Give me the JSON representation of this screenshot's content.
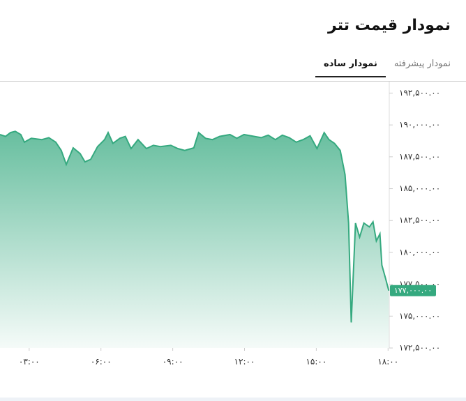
{
  "header": {
    "title": "نمودار قیمت تتر",
    "tabs": [
      "نمودار ساده",
      "نمودار پیشرفته"
    ]
  },
  "chart_data": {
    "type": "area",
    "color": "#35a97f",
    "x": [
      1.78,
      2.01,
      2.22,
      2.42,
      2.65,
      2.8,
      3.09,
      3.53,
      3.82,
      4.11,
      4.34,
      4.55,
      4.84,
      5.13,
      5.33,
      5.57,
      5.86,
      6.15,
      6.3,
      6.5,
      6.79,
      7.02,
      7.26,
      7.55,
      7.9,
      8.19,
      8.48,
      8.92,
      9.21,
      9.5,
      9.88,
      10.08,
      10.37,
      10.66,
      10.96,
      11.39,
      11.68,
      11.98,
      12.41,
      12.7,
      12.99,
      13.29,
      13.58,
      13.87,
      14.16,
      14.45,
      14.74,
      15.03,
      15.33,
      15.53,
      15.76,
      16.0,
      16.2,
      16.35,
      16.46,
      16.64,
      16.81,
      16.99,
      17.22,
      17.37,
      17.51,
      17.66,
      17.74,
      17.89,
      18.03
    ],
    "values": [
      189250,
      189100,
      189400,
      189500,
      189250,
      188650,
      188950,
      188850,
      189000,
      188650,
      188000,
      186900,
      188200,
      187750,
      187100,
      187300,
      188300,
      188850,
      189400,
      188550,
      188950,
      189100,
      188150,
      188850,
      188150,
      188400,
      188300,
      188400,
      188150,
      188000,
      188200,
      189400,
      188950,
      188850,
      189100,
      189250,
      188950,
      189250,
      189100,
      189000,
      189200,
      188850,
      189200,
      189000,
      188650,
      188850,
      189150,
      188150,
      189400,
      188850,
      188550,
      188000,
      186100,
      182300,
      174500,
      182300,
      181200,
      182300,
      182000,
      182400,
      180900,
      181450,
      179000,
      178000,
      177000
    ],
    "xlim": [
      1.78,
      18.05
    ],
    "xticks": [
      {
        "value": 3,
        "label": "۰۳:۰۰"
      },
      {
        "value": 6,
        "label": "۰۶:۰۰"
      },
      {
        "value": 9,
        "label": "۰۹:۰۰"
      },
      {
        "value": 12,
        "label": "۱۲:۰۰"
      },
      {
        "value": 15,
        "label": "۱۵:۰۰"
      },
      {
        "value": 18,
        "label": "۱۸:۰۰"
      }
    ],
    "ylim": [
      172500,
      193400
    ],
    "yticks": [
      {
        "value": 172500,
        "label": "۱۷۲,۵۰۰.۰۰"
      },
      {
        "value": 175000,
        "label": "۱۷۵,۰۰۰.۰۰"
      },
      {
        "value": 177500,
        "label": "۱۷۷,۵۰۰.۰۰"
      },
      {
        "value": 180000,
        "label": "۱۸۰,۰۰۰.۰۰"
      },
      {
        "value": 182500,
        "label": "۱۸۲,۵۰۰.۰۰"
      },
      {
        "value": 185000,
        "label": "۱۸۵,۰۰۰.۰۰"
      },
      {
        "value": 187500,
        "label": "۱۸۷,۵۰۰.۰۰"
      },
      {
        "value": 190000,
        "label": "۱۹۰,۰۰۰.۰۰"
      },
      {
        "value": 192500,
        "label": "۱۹۲,۵۰۰.۰۰"
      }
    ],
    "current_price": {
      "value": 177000,
      "label": "۱۷۷,۰۰۰.۰۰"
    }
  }
}
